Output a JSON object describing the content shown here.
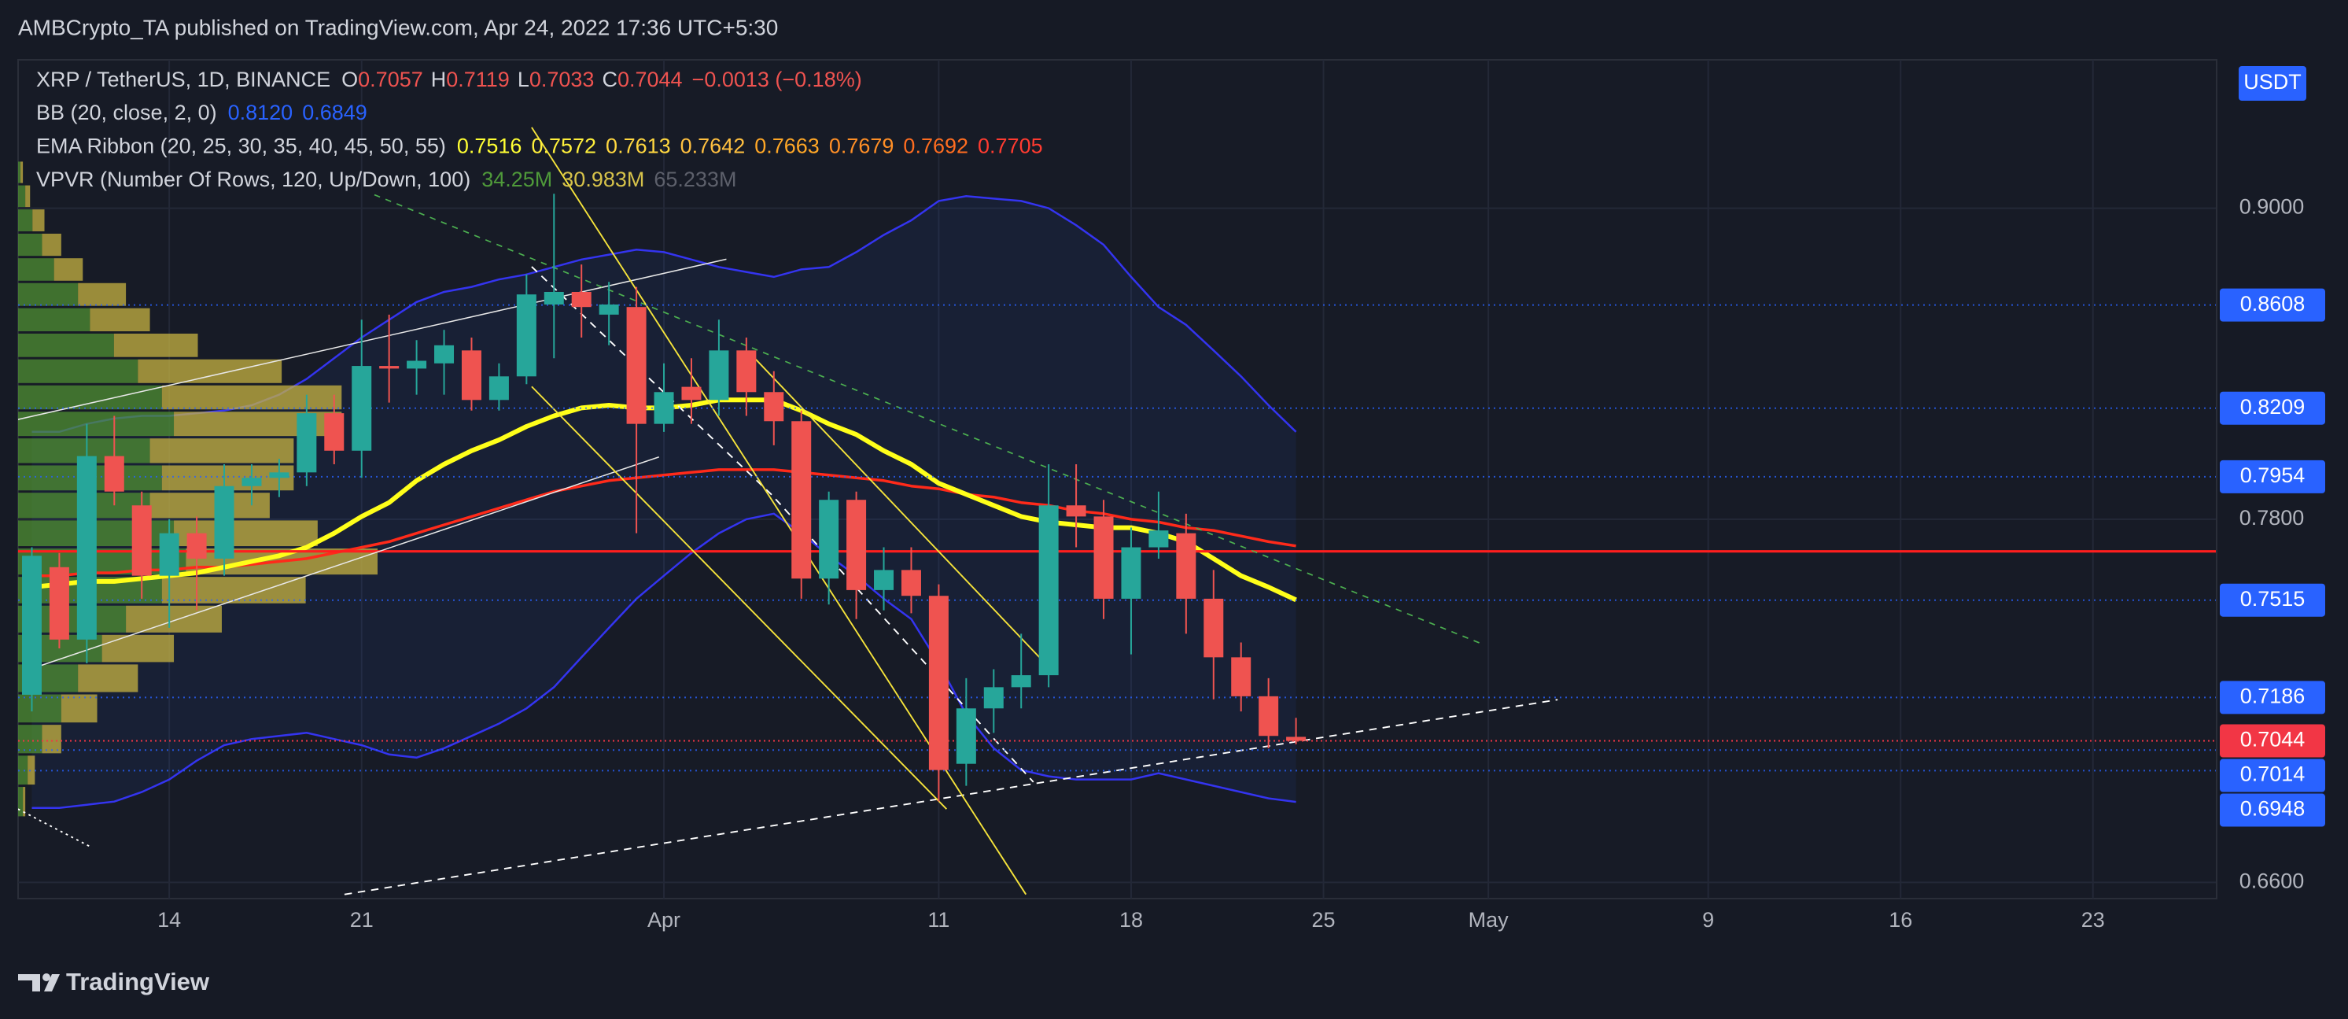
{
  "header": {
    "publisher": "AMBCrypto_TA published on TradingView.com, Apr 24, 2022 17:36 UTC+5:30"
  },
  "footer": {
    "brand": "TradingView"
  },
  "chart_data": {
    "type": "candlestick",
    "title": "XRP / TetherUS, 1D, BINANCE",
    "ohlc_letters": [
      "O",
      "H",
      "L",
      "C"
    ],
    "change": "−0.0013 (−0.18%)",
    "up_color": "#26a69a",
    "down_color": "#ef5350",
    "log": true,
    "grid": true,
    "ylim": [
      0.6558,
      0.9636
    ],
    "yticks": [
      {
        "value": 0.66,
        "label": "0.6600"
      },
      {
        "value": 0.78,
        "label": "0.7800"
      },
      {
        "value": 0.9,
        "label": "0.9000"
      }
    ],
    "currency": "USDT",
    "level_lines": [
      0.8608,
      0.8209,
      0.7954,
      0.7515,
      0.7186,
      0.7014,
      0.6948
    ],
    "level_color": "#2962ff",
    "last_price_color": "#f23645",
    "categories": [
      null,
      null,
      null,
      null,
      null,
      "14",
      null,
      null,
      null,
      null,
      null,
      null,
      "21",
      null,
      null,
      null,
      null,
      null,
      null,
      null,
      null,
      null,
      null,
      "Apr",
      null,
      null,
      null,
      null,
      null,
      null,
      null,
      null,
      null,
      "11",
      null,
      null,
      null,
      null,
      null,
      null,
      "18",
      null,
      null,
      null,
      null,
      null,
      null,
      "25",
      null,
      null,
      null,
      null,
      null,
      "May",
      null,
      null,
      null,
      null,
      null,
      null,
      null,
      "9",
      null,
      null,
      null,
      null,
      null,
      null,
      "16",
      null,
      null,
      null,
      null,
      null,
      null,
      "23",
      null,
      null,
      null,
      null
    ],
    "open": [
      0.7195,
      0.763,
      0.738,
      0.803,
      0.785,
      0.76,
      0.775,
      0.766,
      0.792,
      0.795,
      0.797,
      0.819,
      0.805,
      0.837,
      0.836,
      0.838,
      0.843,
      0.824,
      0.833,
      0.861,
      0.866,
      0.857,
      0.86,
      0.815,
      0.829,
      0.824,
      0.843,
      0.827,
      0.816,
      0.759,
      0.787,
      0.755,
      0.762,
      0.753,
      0.697,
      0.715,
      0.722,
      0.726,
      0.785,
      0.781,
      0.752,
      0.77,
      0.775,
      0.752,
      0.732,
      0.719,
      0.7057,
      null,
      null,
      null,
      null,
      null,
      null,
      null,
      null,
      null,
      null,
      null,
      null,
      null,
      null,
      null,
      null,
      null,
      null,
      null,
      null,
      null,
      null,
      null,
      null,
      null,
      null,
      null,
      null,
      null,
      null,
      null,
      null,
      null
    ],
    "high": [
      0.77,
      0.768,
      0.815,
      0.818,
      0.79,
      0.78,
      0.781,
      0.8,
      0.8,
      0.802,
      0.826,
      0.826,
      0.855,
      0.857,
      0.847,
      0.851,
      0.848,
      0.838,
      0.873,
      0.906,
      0.877,
      0.87,
      0.868,
      0.838,
      0.84,
      0.855,
      0.848,
      0.835,
      0.82,
      0.79,
      0.79,
      0.77,
      0.77,
      0.757,
      0.725,
      0.728,
      0.74,
      0.8,
      0.8,
      0.787,
      0.777,
      0.79,
      0.782,
      0.762,
      0.737,
      0.725,
      0.7119,
      null,
      null,
      null,
      null,
      null,
      null,
      null,
      null,
      null,
      null,
      null,
      null,
      null,
      null,
      null,
      null,
      null,
      null,
      null,
      null,
      null,
      null,
      null,
      null,
      null,
      null,
      null,
      null,
      null,
      null,
      null,
      null,
      null
    ],
    "low": [
      0.714,
      0.735,
      0.73,
      0.785,
      0.752,
      0.742,
      0.748,
      0.76,
      0.785,
      0.788,
      0.792,
      0.8,
      0.795,
      0.823,
      0.826,
      0.826,
      0.82,
      0.82,
      0.83,
      0.84,
      0.848,
      0.845,
      0.775,
      0.812,
      0.815,
      0.818,
      0.818,
      0.807,
      0.752,
      0.75,
      0.745,
      0.748,
      0.747,
      0.685,
      0.69,
      0.707,
      0.715,
      0.722,
      0.77,
      0.745,
      0.733,
      0.766,
      0.74,
      0.718,
      0.714,
      0.702,
      0.7033,
      null,
      null,
      null,
      null,
      null,
      null,
      null,
      null,
      null,
      null,
      null,
      null,
      null,
      null,
      null,
      null,
      null,
      null,
      null,
      null,
      null,
      null,
      null,
      null,
      null,
      null,
      null,
      null,
      null,
      null,
      null,
      null,
      null
    ],
    "close": [
      0.767,
      0.738,
      0.803,
      0.79,
      0.76,
      0.775,
      0.766,
      0.792,
      0.795,
      0.797,
      0.819,
      0.805,
      0.837,
      0.836,
      0.839,
      0.845,
      0.824,
      0.833,
      0.865,
      0.866,
      0.86,
      0.861,
      0.815,
      0.827,
      0.824,
      0.843,
      0.827,
      0.816,
      0.759,
      0.787,
      0.755,
      0.762,
      0.753,
      0.695,
      0.715,
      0.722,
      0.726,
      0.785,
      0.781,
      0.752,
      0.77,
      0.776,
      0.752,
      0.732,
      0.719,
      0.706,
      0.7044,
      null,
      null,
      null,
      null,
      null,
      null,
      null,
      null,
      null,
      null,
      null,
      null,
      null,
      null,
      null,
      null,
      null,
      null,
      null,
      null,
      null,
      null,
      null,
      null,
      null,
      null,
      null,
      null,
      null,
      null,
      null,
      null,
      null
    ],
    "indicators": [
      {
        "name": "BB (20, close, 2, 0)",
        "legend_values": [
          "0.8120",
          "0.6849"
        ],
        "legend_colors": [
          "#2962ff",
          "#2962ff"
        ],
        "series": [
          {
            "color": "#3434f0",
            "values": [
              0.812,
              0.812,
              0.815,
              0.817,
              0.818,
              0.818,
              0.819,
              0.82,
              0.822,
              0.826,
              0.832,
              0.84,
              0.848,
              0.855,
              0.862,
              0.866,
              0.868,
              0.871,
              0.873,
              0.876,
              0.879,
              0.881,
              0.883,
              0.882,
              0.879,
              0.876,
              0.874,
              0.872,
              0.875,
              0.876,
              0.882,
              0.889,
              0.895,
              0.903,
              0.905,
              0.904,
              0.903,
              0.9,
              0.893,
              0.885,
              0.872,
              0.86,
              0.853,
              0.843,
              0.833,
              0.822,
              0.812,
              null,
              null,
              null,
              null,
              null,
              null,
              null,
              null,
              null,
              null,
              null,
              null,
              null,
              null,
              null,
              null,
              null,
              null,
              null,
              null,
              null,
              null,
              null,
              null,
              null,
              null,
              null,
              null,
              null,
              null,
              null,
              null,
              null
            ]
          },
          {
            "color": "#3434f0",
            "values": [
              0.683,
              0.683,
              0.684,
              0.685,
              0.688,
              0.692,
              0.698,
              0.703,
              0.705,
              0.706,
              0.707,
              0.705,
              0.703,
              0.7,
              0.699,
              0.702,
              0.706,
              0.71,
              0.715,
              0.722,
              0.732,
              0.742,
              0.752,
              0.76,
              0.768,
              0.775,
              0.78,
              0.782,
              0.775,
              0.767,
              0.76,
              0.752,
              0.745,
              0.73,
              0.713,
              0.702,
              0.695,
              0.693,
              0.692,
              0.692,
              0.692,
              0.694,
              0.692,
              0.69,
              0.688,
              0.686,
              0.6849,
              null,
              null,
              null,
              null,
              null,
              null,
              null,
              null,
              null,
              null,
              null,
              null,
              null,
              null,
              null,
              null,
              null,
              null,
              null,
              null,
              null,
              null,
              null,
              null,
              null,
              null,
              null,
              null,
              null,
              null,
              null,
              null,
              null
            ]
          }
        ]
      },
      {
        "name": "EMA Ribbon (20, 25, 30, 35, 40, 45, 50, 55)",
        "legend_values": [
          "0.7516",
          "0.7572",
          "0.7613",
          "0.7642",
          "0.7663",
          "0.7679",
          "0.7692",
          "0.7705"
        ],
        "legend_colors": [
          "#ffff33",
          "#fff03b",
          "#ffd740",
          "#ffc040",
          "#ffa726",
          "#ff8f26",
          "#ff6d20",
          "#ff3b30"
        ],
        "series": [
          {
            "color": "#ffff1a",
            "values": [
              0.756,
              0.757,
              0.758,
              0.758,
              0.759,
              0.76,
              0.761,
              0.763,
              0.765,
              0.767,
              0.77,
              0.775,
              0.781,
              0.786,
              0.794,
              0.8,
              0.805,
              0.809,
              0.814,
              0.818,
              0.821,
              0.822,
              0.821,
              0.821,
              0.822,
              0.824,
              0.824,
              0.824,
              0.82,
              0.815,
              0.811,
              0.805,
              0.8,
              0.793,
              0.789,
              0.785,
              0.781,
              0.779,
              0.778,
              0.777,
              0.777,
              0.775,
              0.772,
              0.766,
              0.76,
              0.756,
              0.7516,
              null,
              null,
              null,
              null,
              null,
              null,
              null,
              null,
              null,
              null,
              null,
              null,
              null,
              null,
              null,
              null,
              null,
              null,
              null,
              null,
              null,
              null,
              null,
              null,
              null,
              null,
              null,
              null,
              null,
              null,
              null,
              null,
              null
            ]
          },
          {
            "color": "#ff2a1a",
            "values": [
              0.76,
              0.76,
              0.761,
              0.761,
              0.762,
              0.762,
              0.763,
              0.763,
              0.764,
              0.765,
              0.766,
              0.768,
              0.77,
              0.772,
              0.775,
              0.778,
              0.781,
              0.784,
              0.787,
              0.79,
              0.792,
              0.794,
              0.795,
              0.796,
              0.797,
              0.798,
              0.798,
              0.798,
              0.797,
              0.796,
              0.795,
              0.794,
              0.792,
              0.791,
              0.789,
              0.788,
              0.786,
              0.785,
              0.783,
              0.782,
              0.78,
              0.779,
              0.777,
              0.776,
              0.774,
              0.772,
              0.7705,
              null,
              null,
              null,
              null,
              null,
              null,
              null,
              null,
              null,
              null,
              null,
              null,
              null,
              null,
              null,
              null,
              null,
              null,
              null,
              null,
              null,
              null,
              null,
              null,
              null,
              null,
              null,
              null,
              null,
              null,
              null,
              null,
              null
            ]
          }
        ]
      },
      {
        "name": "VPVR (Number Of Rows, 120, Up/Down, 100)",
        "legend_values": [
          "34.25M",
          "30.983M",
          "65.233M"
        ],
        "legend_colors": [
          "#4f9a3a",
          "#d6c24a",
          "#5d606b"
        ],
        "up_color": "#4f8f33",
        "down_color": "#c7b342",
        "bins": [
          0.68,
          0.69,
          0.7,
          0.71,
          0.72,
          0.73,
          0.74,
          0.75,
          0.76,
          0.77,
          0.78,
          0.79,
          0.8,
          0.81,
          0.82,
          0.83,
          0.84,
          0.85,
          0.86,
          0.87,
          0.88,
          0.89,
          0.9,
          0.91,
          0.92
        ],
        "up": [
          2,
          4,
          10,
          18,
          25,
          35,
          45,
          60,
          70,
          65,
          55,
          60,
          55,
          65,
          60,
          50,
          40,
          30,
          25,
          15,
          10,
          6,
          3,
          1
        ],
        "down": [
          1,
          3,
          8,
          15,
          25,
          30,
          40,
          60,
          80,
          60,
          50,
          55,
          60,
          70,
          75,
          60,
          35,
          25,
          20,
          12,
          8,
          5,
          2,
          1
        ]
      }
    ]
  }
}
